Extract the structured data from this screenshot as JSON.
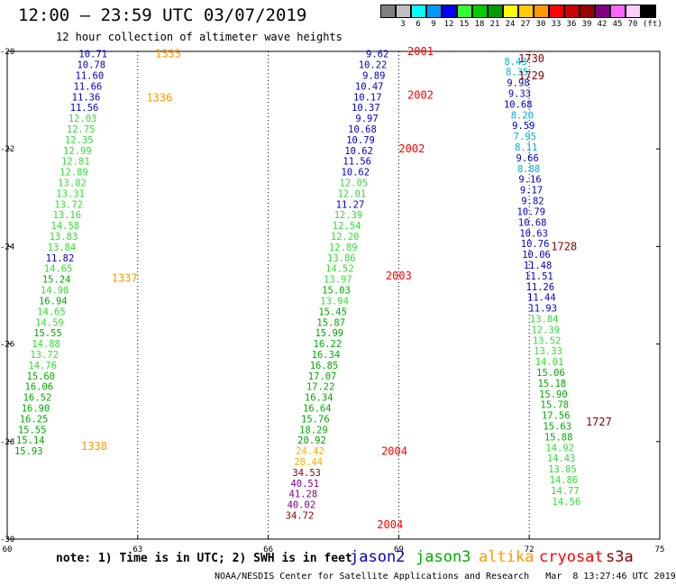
{
  "header": {
    "title": "12:00 – 23:59 UTC 03/07/2019",
    "subtitle": "12 hour collection of altimeter wave heights",
    "note": "note: 1) Time is in UTC; 2) SWH is in feet",
    "credit": "NOAA/NESDIS Center for Satellite Applications and Research   Mar  8 13:27:46 UTC 2019",
    "unit": "(ft)"
  },
  "satellites": [
    {
      "name": "jason2",
      "color": "#0000cc"
    },
    {
      "name": "jason3",
      "color": "#00aa00"
    },
    {
      "name": "altika",
      "color": "#ff9900"
    },
    {
      "name": "cryosat",
      "color": "#ff0000"
    },
    {
      "name": "s3a",
      "color": "#8b0000"
    }
  ],
  "color_scale": [
    {
      "label": "",
      "color": "#808080"
    },
    {
      "label": "3",
      "color": "#c0c0c0"
    },
    {
      "label": "6",
      "color": "#00ffff"
    },
    {
      "label": "9",
      "color": "#0099ff"
    },
    {
      "label": "12",
      "color": "#0000ff"
    },
    {
      "label": "15",
      "color": "#33ff33"
    },
    {
      "label": "18",
      "color": "#00cc00"
    },
    {
      "label": "21",
      "color": "#009900"
    },
    {
      "label": "24",
      "color": "#ffff00"
    },
    {
      "label": "27",
      "color": "#ffcc00"
    },
    {
      "label": "30",
      "color": "#ff9900"
    },
    {
      "label": "33",
      "color": "#ff0000"
    },
    {
      "label": "36",
      "color": "#cc0000"
    },
    {
      "label": "39",
      "color": "#990000"
    },
    {
      "label": "42",
      "color": "#800080"
    },
    {
      "label": "45",
      "color": "#ff66ff"
    },
    {
      "label": "70",
      "color": "#ffccff"
    },
    {
      "label": "",
      "color": "#000000"
    }
  ],
  "chart_data": {
    "type": "scatter",
    "xlim": [
      60,
      75
    ],
    "ylim": [
      -30,
      -20
    ],
    "x_ticks": [
      "60",
      "63",
      "66",
      "69",
      "72",
      "75"
    ],
    "y_ticks": [
      "-20",
      "-22",
      "-24",
      "-26",
      "-28",
      "-30"
    ],
    "gridlines_x": [
      63,
      66,
      69,
      72
    ],
    "swh_color_bins": [
      {
        "max": 9,
        "color": "#00b0e0"
      },
      {
        "max": 15,
        "color": "#0000cc"
      },
      {
        "max": 18,
        "color": "#33dd33"
      },
      {
        "max": 21,
        "color": "#00aa00"
      },
      {
        "max": 24,
        "color": "#009900"
      },
      {
        "max": 30,
        "color": "#ffaa00"
      },
      {
        "max": 36,
        "color": "#880000"
      },
      {
        "max": 45,
        "color": "#800080"
      }
    ],
    "tracks": [
      {
        "x0": 62.3,
        "y0": -20.05,
        "dx": -0.04,
        "dy": 0.22,
        "values": [
          10.71,
          10.78,
          11.6,
          11.66,
          11.36,
          11.56,
          12.03,
          12.75,
          12.35,
          12.99,
          12.81,
          12.89,
          13.82,
          13.31,
          13.72,
          13.16,
          14.58,
          13.83,
          13.84,
          11.82,
          14.65,
          15.24,
          14.98,
          16.94,
          14.65,
          14.59,
          15.55,
          14.88,
          13.72,
          14.76,
          15.6,
          16.06,
          16.52,
          16.9,
          16.25,
          15.55,
          15.14,
          15.93
        ],
        "colors": [
          "#0000cc",
          "#0000cc",
          "#0000cc",
          "#0000cc",
          "#0000cc",
          "#0000cc",
          "#33dd33",
          "#33dd33",
          "#33dd33",
          "#33dd33",
          "#33dd33",
          "#33dd33",
          "#33dd33",
          "#33dd33",
          "#33dd33",
          "#33dd33",
          "#33dd33",
          "#33dd33",
          "#33dd33",
          "#0000cc",
          "#33dd33",
          "#00aa00",
          "#33dd33",
          "#00aa00",
          "#33dd33",
          "#33dd33",
          "#00aa00",
          "#33dd33",
          "#33dd33",
          "#33dd33",
          "#00aa00",
          "#00aa00",
          "#00aa00",
          "#00aa00",
          "#00aa00",
          "#00aa00",
          "#00aa00",
          "#00aa00"
        ]
      },
      {
        "x0": 68.77,
        "y0": -20.05,
        "dx": -0.04,
        "dy": 0.22,
        "values": [
          9.62,
          10.22,
          9.89,
          10.47,
          10.17,
          10.37,
          9.97,
          10.68,
          10.79,
          10.62,
          11.56,
          10.62,
          12.05,
          12.01,
          11.27,
          12.39,
          12.54,
          12.2,
          12.89,
          13.86,
          14.52,
          13.97,
          15.03,
          13.94,
          15.45,
          15.87,
          15.99,
          16.22,
          16.34,
          16.85,
          17.07,
          17.22,
          16.34,
          16.64,
          15.76,
          18.29,
          20.92,
          24.42,
          28.44,
          34.53,
          40.51,
          41.28,
          40.02,
          34.72
        ],
        "colors": [
          "#0000cc",
          "#0000cc",
          "#0000cc",
          "#0000cc",
          "#0000cc",
          "#0000cc",
          "#0000cc",
          "#0000cc",
          "#0000cc",
          "#0000cc",
          "#0000cc",
          "#0000cc",
          "#33dd33",
          "#33dd33",
          "#0000cc",
          "#33dd33",
          "#33dd33",
          "#33dd33",
          "#33dd33",
          "#33dd33",
          "#33dd33",
          "#33dd33",
          "#00aa00",
          "#33dd33",
          "#00aa00",
          "#00aa00",
          "#00aa00",
          "#00aa00",
          "#00aa00",
          "#00aa00",
          "#00aa00",
          "#00aa00",
          "#00aa00",
          "#00aa00",
          "#00aa00",
          "#00aa00",
          "#009900",
          "#ffaa00",
          "#ffaa00",
          "#880000",
          "#800080",
          "#800080",
          "#800080",
          "#880000"
        ]
      },
      {
        "x0": 71.95,
        "y0": -20.2,
        "dx": 0.03,
        "dy": 0.22,
        "values": [
          8.43,
          8.35,
          9.98,
          9.33,
          10.68,
          8.2,
          9.59,
          7.95,
          8.11,
          9.66,
          8.88,
          9.16,
          9.17,
          9.82,
          10.79,
          10.68,
          10.63,
          10.76,
          10.06,
          11.48,
          11.51,
          11.26,
          11.44,
          11.93,
          13.84,
          12.39,
          13.52,
          13.33,
          14.01,
          15.06,
          15.18,
          15.9,
          15.78,
          17.56,
          15.63,
          15.88,
          14.92,
          14.43,
          13.85,
          14.86,
          14.77,
          14.56
        ],
        "colors": [
          "#00b0e0",
          "#00b0e0",
          "#0000cc",
          "#0000cc",
          "#0000cc",
          "#00b0e0",
          "#0000cc",
          "#00b0e0",
          "#00b0e0",
          "#0000cc",
          "#00b0e0",
          "#0000cc",
          "#0000cc",
          "#0000cc",
          "#0000cc",
          "#0000cc",
          "#0000cc",
          "#0000cc",
          "#0000cc",
          "#0000cc",
          "#0000cc",
          "#0000cc",
          "#0000cc",
          "#0000cc",
          "#33dd33",
          "#33dd33",
          "#33dd33",
          "#33dd33",
          "#33dd33",
          "#00aa00",
          "#00aa00",
          "#00aa00",
          "#00aa00",
          "#00aa00",
          "#00aa00",
          "#00aa00",
          "#33dd33",
          "#33dd33",
          "#33dd33",
          "#33dd33",
          "#33dd33",
          "#33dd33"
        ]
      }
    ],
    "time_labels": [
      {
        "text": "1335",
        "x": 63.4,
        "y": -20.05,
        "color": "#ff9900"
      },
      {
        "text": "1336",
        "x": 63.2,
        "y": -20.95,
        "color": "#ff9900"
      },
      {
        "text": "1337",
        "x": 62.4,
        "y": -24.65,
        "color": "#ff9900"
      },
      {
        "text": "1338",
        "x": 61.7,
        "y": -28.1,
        "color": "#ff9900"
      },
      {
        "text": "2001",
        "x": 69.2,
        "y": -20.0,
        "color": "#ff0000"
      },
      {
        "text": "2002",
        "x": 69.2,
        "y": -20.9,
        "color": "#ff0000"
      },
      {
        "text": "2002",
        "x": 69.0,
        "y": -22.0,
        "color": "#ff0000"
      },
      {
        "text": "2003",
        "x": 68.7,
        "y": -24.6,
        "color": "#ff0000"
      },
      {
        "text": "2004",
        "x": 68.6,
        "y": -28.2,
        "color": "#ff0000"
      },
      {
        "text": "2004",
        "x": 68.5,
        "y": -29.7,
        "color": "#ff0000"
      },
      {
        "text": "1730",
        "x": 71.75,
        "y": -20.15,
        "color": "#8b0000"
      },
      {
        "text": "1729",
        "x": 71.75,
        "y": -20.5,
        "color": "#8b0000"
      },
      {
        "text": "1728",
        "x": 72.5,
        "y": -24.0,
        "color": "#8b0000"
      },
      {
        "text": "1727",
        "x": 73.3,
        "y": -27.6,
        "color": "#8b0000"
      }
    ]
  }
}
